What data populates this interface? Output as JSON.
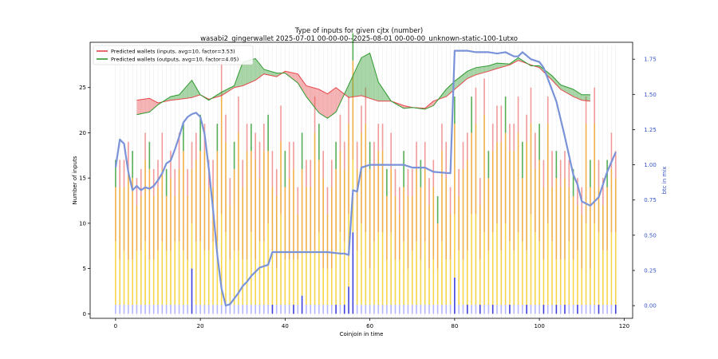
{
  "chart_data": {
    "type": "bar",
    "title": "Type of inputs for given cjtx (number)",
    "subtitle": "wasabi2_gingerwallet 2025-07-01 00-00-00--2025-08-01 00-00-00_unknown-static-100-1utxo",
    "xlabel": "Coinjoin in time",
    "ylabel": "Number of inputs",
    "y2label": "btc in mix",
    "xlim": [
      -6,
      122
    ],
    "ylim": [
      -0.5,
      30
    ],
    "y2lim": [
      -0.09,
      1.87
    ],
    "xticks": [
      0,
      20,
      40,
      60,
      80,
      100,
      120
    ],
    "yticks": [
      0,
      5,
      10,
      15,
      20,
      25
    ],
    "y2ticks": [
      "0.00",
      "0.25",
      "0.50",
      "0.75",
      "1.00",
      "1.25",
      "1.50",
      "1.75"
    ],
    "grid": false,
    "legend_position": "top-left",
    "colors": {
      "predicted_inputs": "#e8474a",
      "predicted_outputs": "#2e9a2e",
      "btc_line": "#7a93d8",
      "stack_fresh": "#f08a8a",
      "stack_remixed": "#f0a22a",
      "stack_small": "#f7cf2a",
      "stack_blue_light": "#a9a9ff",
      "stack_blue_dark": "#1f1fd8",
      "stack_green": "#3aa03a"
    },
    "series": [
      {
        "name": "Predicted wallets (inputs, avg=10, factor=3.53)",
        "x": [
          5,
          8,
          10,
          13,
          15,
          18,
          20,
          22,
          25,
          28,
          30,
          33,
          35,
          38,
          40,
          43,
          45,
          48,
          50,
          52,
          55,
          58,
          60,
          62,
          65,
          68,
          70,
          73,
          75,
          78,
          80,
          83,
          85,
          88,
          90,
          93,
          95,
          98,
          100,
          103,
          105,
          108,
          110,
          112
        ],
        "values": [
          23.6,
          23.8,
          23.3,
          23.6,
          23.7,
          23.9,
          24.2,
          23.7,
          24.1,
          25.0,
          25.2,
          25.8,
          26.5,
          26.2,
          26.8,
          26.5,
          25.2,
          24.8,
          24.3,
          25.0,
          23.9,
          24.1,
          23.8,
          23.5,
          23.5,
          23.0,
          22.8,
          22.7,
          23.5,
          24.0,
          24.8,
          26.0,
          26.4,
          26.8,
          27.1,
          27.5,
          28.0,
          27.5,
          27.2,
          25.8,
          24.8,
          24.0,
          23.6,
          23.5
        ]
      },
      {
        "name": "Predicted wallets (outputs, avg=10, factor=4.05)",
        "x": [
          5,
          8,
          10,
          13,
          15,
          18,
          20,
          22,
          25,
          28,
          30,
          33,
          35,
          38,
          40,
          43,
          45,
          48,
          50,
          52,
          55,
          58,
          60,
          62,
          65,
          68,
          70,
          73,
          75,
          78,
          80,
          83,
          85,
          88,
          90,
          93,
          95,
          98,
          100,
          103,
          105,
          108,
          110,
          112
        ],
        "values": [
          22.0,
          22.3,
          23.1,
          24.0,
          24.2,
          25.8,
          24.2,
          23.6,
          24.5,
          25.2,
          27.8,
          28.2,
          27.0,
          26.6,
          26.6,
          25.5,
          24.0,
          22.2,
          21.6,
          22.3,
          25.3,
          28.3,
          28.8,
          25.6,
          23.5,
          22.7,
          22.8,
          22.6,
          23.0,
          24.8,
          25.7,
          26.8,
          27.2,
          27.4,
          27.7,
          27.6,
          28.3,
          27.4,
          27.4,
          26.3,
          25.3,
          24.8,
          24.2,
          24.2
        ]
      },
      {
        "name": "btc in mix",
        "axis": "right",
        "x": [
          0,
          1,
          2,
          3,
          4,
          5,
          6,
          7,
          8,
          9,
          10,
          11,
          12,
          13,
          14,
          15,
          16,
          17,
          18,
          19,
          20,
          21,
          22,
          23,
          24,
          25,
          26,
          27,
          28,
          29,
          30,
          31,
          32,
          33,
          34,
          35,
          36,
          37,
          38,
          40,
          43,
          45,
          48,
          50,
          53,
          54,
          55,
          56,
          57,
          58,
          60,
          63,
          65,
          68,
          70,
          73,
          75,
          79,
          80,
          81,
          83,
          85,
          88,
          90,
          92,
          94,
          95,
          96,
          98,
          100,
          101,
          102,
          104,
          106,
          108,
          109,
          110,
          112,
          114,
          116,
          118
        ],
        "values": [
          0.98,
          1.18,
          1.15,
          0.95,
          0.82,
          0.85,
          0.82,
          0.84,
          0.83,
          0.85,
          0.89,
          0.94,
          1.01,
          1.03,
          1.11,
          1.2,
          1.3,
          1.34,
          1.36,
          1.37,
          1.34,
          1.22,
          0.97,
          0.68,
          0.36,
          0.12,
          0.0,
          0.01,
          0.05,
          0.09,
          0.14,
          0.17,
          0.21,
          0.24,
          0.27,
          0.28,
          0.29,
          0.38,
          0.38,
          0.38,
          0.38,
          0.38,
          0.38,
          0.38,
          0.37,
          0.37,
          0.36,
          0.82,
          0.81,
          0.98,
          1.0,
          1.0,
          1.0,
          1.0,
          0.98,
          0.98,
          0.95,
          0.94,
          1.81,
          1.81,
          1.81,
          1.8,
          1.8,
          1.79,
          1.8,
          1.77,
          1.77,
          1.8,
          1.75,
          1.73,
          1.69,
          1.61,
          1.45,
          1.2,
          0.93,
          0.86,
          0.74,
          0.71,
          0.77,
          0.95,
          1.09
        ]
      }
    ],
    "stacked_layers": [
      {
        "name": "blue-light",
        "values_note": "0-1 inputs per coinjoin"
      },
      {
        "name": "blue-dark",
        "x": [
          18,
          37,
          42,
          44,
          52,
          54,
          55,
          56,
          80,
          83,
          86,
          89,
          93,
          97,
          101,
          104,
          106,
          109,
          114,
          118
        ],
        "values": [
          5,
          1,
          1,
          2,
          1,
          1,
          3,
          9,
          4,
          1,
          1,
          1,
          1,
          1,
          1,
          1,
          1,
          1,
          1,
          1
        ]
      }
    ]
  }
}
